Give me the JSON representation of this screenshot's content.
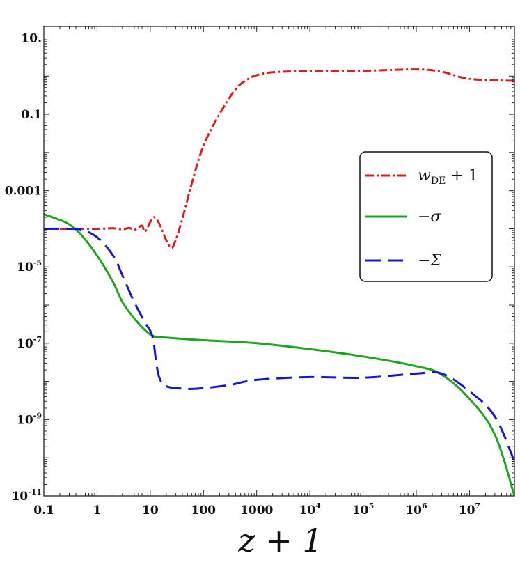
{
  "chart_data": {
    "type": "line",
    "xlabel": "z + 1",
    "ylabel": "",
    "xscale": "log",
    "yscale": "log",
    "xlim": [
      0.1,
      70000000
    ],
    "ylim": [
      1e-11,
      20
    ],
    "grid": false,
    "legend_position": "right",
    "x_ticks": [
      {
        "value": 0.1,
        "label": "0.1"
      },
      {
        "value": 1,
        "label": "1"
      },
      {
        "value": 10,
        "label": "10"
      },
      {
        "value": 100,
        "label": "100"
      },
      {
        "value": 1000,
        "label": "1000"
      },
      {
        "value": 10000,
        "label": "10",
        "exp": "4"
      },
      {
        "value": 100000,
        "label": "10",
        "exp": "5"
      },
      {
        "value": 1000000,
        "label": "10",
        "exp": "6"
      },
      {
        "value": 10000000,
        "label": "10",
        "exp": "7"
      }
    ],
    "y_ticks": [
      {
        "value": 10,
        "label": "10."
      },
      {
        "value": 0.1,
        "label": "0.1"
      },
      {
        "value": 0.001,
        "label": "0.001"
      },
      {
        "value": 1e-05,
        "label": "10",
        "exp": "-5"
      },
      {
        "value": 1e-07,
        "label": "10",
        "exp": "-7"
      },
      {
        "value": 1e-09,
        "label": "10",
        "exp": "-9"
      },
      {
        "value": 1e-11,
        "label": "10",
        "exp": "-11"
      }
    ],
    "series": [
      {
        "name": "w_DE + 1",
        "legend_main": "w",
        "legend_sub": "DE",
        "legend_rest": " + 1",
        "color": "#e31a1c",
        "style": "dashdot",
        "x": [
          0.1,
          0.3,
          1,
          2,
          3,
          4,
          5,
          6,
          7,
          8,
          10,
          12,
          15,
          20,
          25,
          30,
          40,
          60,
          100,
          200,
          400,
          700,
          1000,
          1500,
          3000,
          10000,
          100000,
          1000000,
          3000000,
          10000000,
          70000000
        ],
        "y": [
          0.0001,
          0.0001,
          0.0001,
          0.000103,
          9.65e-05,
          0.000105,
          9.4e-05,
          0.000108,
          0.00012,
          8.5e-05,
          0.00015,
          0.0002,
          0.00013,
          5e-05,
          3.2e-05,
          5e-05,
          0.00018,
          0.0015,
          0.015,
          0.1,
          0.45,
          0.85,
          1.05,
          1.2,
          1.3,
          1.35,
          1.38,
          1.5,
          1.3,
          0.85,
          0.75
        ]
      },
      {
        "name": "−σ",
        "legend_main": "−σ",
        "color": "#1ea51e",
        "style": "solid",
        "x": [
          0.1,
          0.2,
          0.3,
          0.5,
          1,
          2,
          3,
          5,
          8,
          12,
          20,
          100,
          1000,
          10000,
          100000,
          1000000,
          3000000,
          10000000,
          30000000,
          70000000
        ],
        "y": [
          0.00024,
          0.00017,
          0.00013,
          7e-05,
          2e-05,
          4e-06,
          1.2e-06,
          4.5e-07,
          2.2e-07,
          1.5e-07,
          1.4e-07,
          1.2e-07,
          1e-07,
          7e-08,
          4.5e-08,
          2.5e-08,
          1.5e-08,
          3.5e-09,
          4e-10,
          1e-11
        ]
      },
      {
        "name": "−Σ",
        "legend_main": "−Σ",
        "color": "#1515d9",
        "style": "dashed",
        "x": [
          0.1,
          0.3,
          0.5,
          1,
          2,
          3,
          5,
          8,
          11,
          13,
          15,
          20,
          40,
          80,
          300,
          1000,
          10000,
          100000,
          1000000,
          3000000,
          10000000,
          30000000,
          70000000
        ],
        "y": [
          0.0001,
          0.0001,
          9.5e-05,
          6e-05,
          2e-05,
          6e-06,
          1.2e-06,
          3.5e-07,
          1.5e-07,
          3e-08,
          1.2e-08,
          7.5e-09,
          6.5e-09,
          6.5e-09,
          8e-09,
          1.1e-08,
          1.3e-08,
          1.25e-08,
          1.6e-08,
          1.6e-08,
          5.5e-09,
          1.2e-09,
          8e-11
        ]
      }
    ]
  }
}
